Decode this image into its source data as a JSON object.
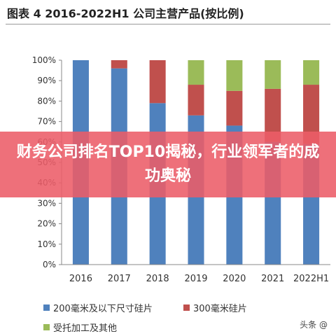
{
  "figure": {
    "title": "图表  4 2016-2022H1 公司主营产品(按比例)"
  },
  "overlay": {
    "headline": "财务公司排名TOP10揭秘，行业领军者的成功奥秘"
  },
  "watermark": "头条 @",
  "chart_data": {
    "type": "bar",
    "stacked": true,
    "categories": [
      "2016",
      "2017",
      "2018",
      "2019",
      "2020",
      "2021",
      "2022H1"
    ],
    "series": [
      {
        "name": "200毫米及以下尺寸硅片",
        "color": "#4f81bd",
        "values": [
          100,
          96,
          79,
          73,
          68,
          60,
          59
        ]
      },
      {
        "name": "300毫米硅片",
        "color": "#c0504d",
        "values": [
          0,
          4,
          21,
          15,
          17,
          26,
          29
        ]
      },
      {
        "name": "受托加工及其他",
        "color": "#9bbb59",
        "values": [
          0,
          0,
          0,
          12,
          15,
          14,
          12
        ]
      }
    ],
    "ylim": [
      0,
      100
    ],
    "yticks": [
      0,
      10,
      20,
      30,
      40,
      50,
      60,
      70,
      80,
      90,
      100
    ],
    "ytick_labels": [
      "0%",
      "10%",
      "20%",
      "30%",
      "40%",
      "50%",
      "60%",
      "70%",
      "80%",
      "90%",
      "100%"
    ],
    "legend_position": "bottom",
    "grid": false
  }
}
